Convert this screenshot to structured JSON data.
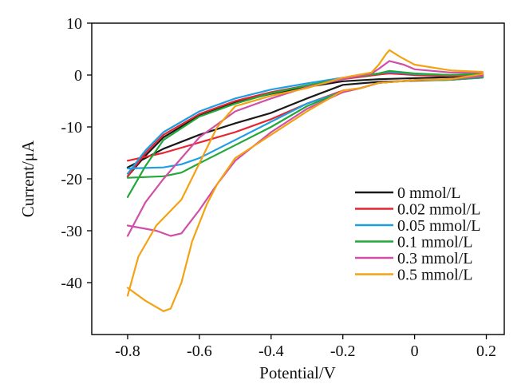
{
  "chart_data": {
    "type": "line",
    "title": "",
    "xlabel": "Potential/V",
    "ylabel": "Current/μA",
    "xlim": [
      -0.9,
      0.25
    ],
    "ylim": [
      -50,
      10
    ],
    "xticks": [
      -0.8,
      -0.6,
      -0.4,
      -0.2,
      0,
      0.2
    ],
    "xtick_labels": [
      "-0.8",
      "-0.6",
      "-0.4",
      "-0.2",
      "0",
      "0.2"
    ],
    "yticks": [
      10,
      0,
      -10,
      -20,
      -30,
      -40
    ],
    "ytick_labels": [
      "10",
      "0",
      "-10",
      "-20",
      "-30",
      "-40"
    ],
    "grid": false,
    "legend_position": "bottom-right",
    "series": [
      {
        "name": "0 mmol/L",
        "color": "#1a1a1a",
        "points": [
          [
            -0.8,
            -19.5
          ],
          [
            -0.75,
            -15.5
          ],
          [
            -0.7,
            -12
          ],
          [
            -0.6,
            -7.8
          ],
          [
            -0.5,
            -5.3
          ],
          [
            -0.4,
            -3.6
          ],
          [
            -0.3,
            -2.3
          ],
          [
            -0.2,
            -1.2
          ],
          [
            -0.1,
            -0.8
          ],
          [
            0,
            -0.6
          ],
          [
            0.1,
            -0.4
          ],
          [
            0.18,
            0
          ],
          [
            0.19,
            -0.4
          ],
          [
            0.1,
            -0.9
          ],
          [
            0,
            -1.1
          ],
          [
            -0.1,
            -1.3
          ],
          [
            -0.2,
            -1.9
          ],
          [
            -0.3,
            -4.5
          ],
          [
            -0.4,
            -7.3
          ],
          [
            -0.5,
            -9.3
          ],
          [
            -0.6,
            -11.5
          ],
          [
            -0.7,
            -14.2
          ],
          [
            -0.8,
            -17.8
          ]
        ]
      },
      {
        "name": "0.02 mmol/L",
        "color": "#e8242e",
        "points": [
          [
            -0.8,
            -19.5
          ],
          [
            -0.75,
            -15
          ],
          [
            -0.7,
            -11.5
          ],
          [
            -0.6,
            -7.5
          ],
          [
            -0.5,
            -5
          ],
          [
            -0.4,
            -3.3
          ],
          [
            -0.3,
            -2
          ],
          [
            -0.2,
            -0.8
          ],
          [
            -0.1,
            0.1
          ],
          [
            -0.07,
            0.3
          ],
          [
            0,
            0
          ],
          [
            0.1,
            -0.2
          ],
          [
            0.19,
            0.1
          ],
          [
            0.19,
            -0.5
          ],
          [
            0.1,
            -0.9
          ],
          [
            0,
            -1
          ],
          [
            -0.1,
            -1.5
          ],
          [
            -0.15,
            -2.5
          ],
          [
            -0.2,
            -3
          ],
          [
            -0.3,
            -5.5
          ],
          [
            -0.4,
            -8.5
          ],
          [
            -0.5,
            -11
          ],
          [
            -0.6,
            -13
          ],
          [
            -0.7,
            -15
          ],
          [
            -0.8,
            -16.5
          ]
        ]
      },
      {
        "name": "0.05 mmol/L",
        "color": "#1e9fe3",
        "points": [
          [
            -0.8,
            -19
          ],
          [
            -0.75,
            -14.5
          ],
          [
            -0.7,
            -11
          ],
          [
            -0.6,
            -7
          ],
          [
            -0.5,
            -4.5
          ],
          [
            -0.4,
            -2.8
          ],
          [
            -0.3,
            -1.6
          ],
          [
            -0.2,
            -0.5
          ],
          [
            -0.1,
            0.3
          ],
          [
            -0.07,
            0.6
          ],
          [
            0,
            0.2
          ],
          [
            0.1,
            0
          ],
          [
            0.19,
            0.2
          ],
          [
            0.19,
            -0.5
          ],
          [
            0.1,
            -0.9
          ],
          [
            0,
            -1
          ],
          [
            -0.1,
            -1.5
          ],
          [
            -0.15,
            -2.5
          ],
          [
            -0.2,
            -3.2
          ],
          [
            -0.3,
            -5.5
          ],
          [
            -0.4,
            -9
          ],
          [
            -0.5,
            -12.5
          ],
          [
            -0.6,
            -16
          ],
          [
            -0.65,
            -17.2
          ],
          [
            -0.7,
            -17.8
          ],
          [
            -0.8,
            -18
          ]
        ]
      },
      {
        "name": "0.1 mmol/L",
        "color": "#22a838",
        "points": [
          [
            -0.8,
            -23.5
          ],
          [
            -0.75,
            -17.5
          ],
          [
            -0.7,
            -12.5
          ],
          [
            -0.6,
            -8
          ],
          [
            -0.5,
            -5.5
          ],
          [
            -0.4,
            -3.5
          ],
          [
            -0.3,
            -2
          ],
          [
            -0.2,
            -0.7
          ],
          [
            -0.1,
            0.3
          ],
          [
            -0.07,
            0.8
          ],
          [
            0,
            0.3
          ],
          [
            0.1,
            0
          ],
          [
            0.19,
            0.3
          ],
          [
            0.19,
            -0.4
          ],
          [
            0.1,
            -0.9
          ],
          [
            0,
            -1
          ],
          [
            -0.1,
            -1.5
          ],
          [
            -0.15,
            -2.5
          ],
          [
            -0.2,
            -3.2
          ],
          [
            -0.3,
            -6
          ],
          [
            -0.4,
            -10
          ],
          [
            -0.5,
            -13.5
          ],
          [
            -0.6,
            -17
          ],
          [
            -0.65,
            -18.8
          ],
          [
            -0.7,
            -19.5
          ],
          [
            -0.8,
            -19.8
          ]
        ]
      },
      {
        "name": "0.3 mmol/L",
        "color": "#d14fa7",
        "points": [
          [
            -0.8,
            -31
          ],
          [
            -0.75,
            -24.5
          ],
          [
            -0.7,
            -20
          ],
          [
            -0.6,
            -12
          ],
          [
            -0.5,
            -7
          ],
          [
            -0.4,
            -4.5
          ],
          [
            -0.3,
            -2.3
          ],
          [
            -0.2,
            -0.8
          ],
          [
            -0.12,
            0.3
          ],
          [
            -0.1,
            1.2
          ],
          [
            -0.07,
            2.7
          ],
          [
            -0.03,
            2
          ],
          [
            0,
            1.1
          ],
          [
            0.1,
            0.5
          ],
          [
            0.19,
            0.5
          ],
          [
            0.19,
            -0.2
          ],
          [
            0.1,
            -0.8
          ],
          [
            0,
            -1
          ],
          [
            -0.1,
            -1.5
          ],
          [
            -0.15,
            -2.5
          ],
          [
            -0.2,
            -3.3
          ],
          [
            -0.3,
            -6.5
          ],
          [
            -0.4,
            -11
          ],
          [
            -0.5,
            -16.5
          ],
          [
            -0.55,
            -21
          ],
          [
            -0.6,
            -26
          ],
          [
            -0.65,
            -30.5
          ],
          [
            -0.68,
            -31
          ],
          [
            -0.72,
            -30
          ],
          [
            -0.8,
            -29
          ]
        ]
      },
      {
        "name": "0.5 mmol/L",
        "color": "#f2a213",
        "points": [
          [
            -0.8,
            -42.5
          ],
          [
            -0.77,
            -35
          ],
          [
            -0.72,
            -29
          ],
          [
            -0.65,
            -24
          ],
          [
            -0.6,
            -17
          ],
          [
            -0.55,
            -10
          ],
          [
            -0.5,
            -6
          ],
          [
            -0.4,
            -4
          ],
          [
            -0.3,
            -2.5
          ],
          [
            -0.2,
            -0.5
          ],
          [
            -0.12,
            0.5
          ],
          [
            -0.1,
            2
          ],
          [
            -0.08,
            4
          ],
          [
            -0.07,
            4.8
          ],
          [
            -0.04,
            3.5
          ],
          [
            0,
            2
          ],
          [
            0.1,
            0.9
          ],
          [
            0.19,
            0.6
          ],
          [
            0.19,
            0.2
          ],
          [
            0.1,
            -0.8
          ],
          [
            0,
            -1
          ],
          [
            -0.1,
            -1.5
          ],
          [
            -0.15,
            -2.5
          ],
          [
            -0.2,
            -3
          ],
          [
            -0.3,
            -7
          ],
          [
            -0.4,
            -11.5
          ],
          [
            -0.5,
            -16
          ],
          [
            -0.55,
            -21
          ],
          [
            -0.58,
            -25
          ],
          [
            -0.62,
            -32
          ],
          [
            -0.65,
            -40
          ],
          [
            -0.68,
            -45
          ],
          [
            -0.7,
            -45.5
          ],
          [
            -0.75,
            -43.5
          ],
          [
            -0.8,
            -41
          ]
        ]
      }
    ]
  }
}
